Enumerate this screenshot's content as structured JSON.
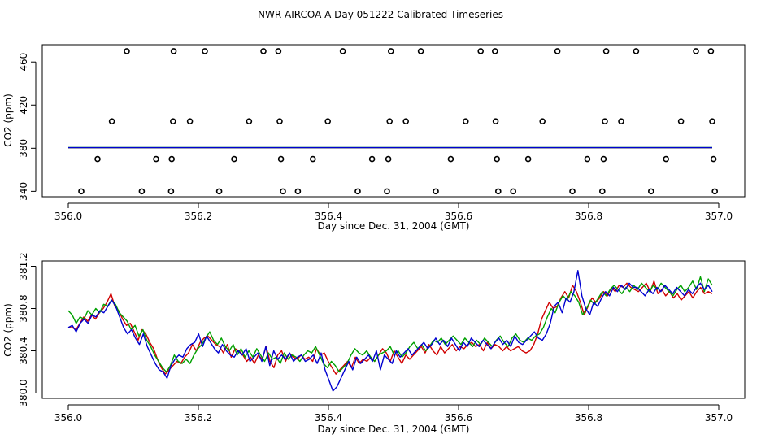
{
  "figure": {
    "title": "NWR AIRCOA A  Day 051222  Calibrated Timeseries"
  },
  "chart_data": [
    {
      "type": "scatter",
      "title": "",
      "xlabel": "Day since Dec. 31, 2004 (GMT)",
      "ylabel": "CO2 (ppm)",
      "xlim": [
        355.96,
        357.04
      ],
      "ylim": [
        335,
        476
      ],
      "xticks": [
        356.0,
        356.2,
        356.4,
        356.6,
        356.8,
        357.0
      ],
      "xtick_labels": [
        "356.0",
        "356.2",
        "356.4",
        "356.6",
        "356.8",
        "357.0"
      ],
      "yticks": [
        340,
        380,
        420,
        460
      ],
      "ytick_labels": [
        "340",
        "380",
        "420",
        "460"
      ],
      "grid": false,
      "points": {
        "color": "#000000",
        "x": [
          356.02,
          356.045,
          356.067,
          356.09,
          356.113,
          356.135,
          356.158,
          356.159,
          356.161,
          356.162,
          356.187,
          356.21,
          356.232,
          356.255,
          356.278,
          356.3,
          356.323,
          356.325,
          356.327,
          356.33,
          356.353,
          356.376,
          356.399,
          356.422,
          356.445,
          356.467,
          356.49,
          356.492,
          356.494,
          356.496,
          356.519,
          356.542,
          356.565,
          356.588,
          356.611,
          356.634,
          356.656,
          356.657,
          356.659,
          356.661,
          356.684,
          356.707,
          356.729,
          356.752,
          356.775,
          356.798,
          356.821,
          356.823,
          356.825,
          356.827,
          356.85,
          356.873,
          356.896,
          356.919,
          356.942,
          356.965,
          356.988,
          356.99,
          356.992,
          356.994
        ],
        "y": [
          340,
          370,
          405,
          470,
          340,
          370,
          340,
          370,
          405,
          470,
          405,
          470,
          340,
          370,
          405,
          470,
          470,
          405,
          370,
          340,
          340,
          370,
          405,
          470,
          340,
          370,
          340,
          370,
          405,
          470,
          405,
          470,
          340,
          370,
          405,
          470,
          470,
          405,
          370,
          340,
          340,
          370,
          405,
          470,
          340,
          370,
          340,
          370,
          405,
          470,
          405,
          470,
          340,
          370,
          405,
          470,
          470,
          405,
          370,
          340
        ]
      },
      "series": [
        {
          "color": "#d00000",
          "x_start": 356.0,
          "x_end": 356.99,
          "values": [
            380.5
          ]
        },
        {
          "color": "#00a000",
          "x_start": 356.0,
          "x_end": 356.99,
          "values": [
            380.6
          ]
        },
        {
          "color": "#0000d0",
          "x_start": 356.0,
          "x_end": 356.99,
          "values": [
            380.55
          ]
        }
      ]
    },
    {
      "type": "line",
      "title": "",
      "xlabel": "Day since Dec. 31, 2004 (GMT)",
      "ylabel": "CO2 (ppm)",
      "xlim": [
        355.96,
        357.04
      ],
      "ylim": [
        379.95,
        381.25
      ],
      "xticks": [
        356.0,
        356.2,
        356.4,
        356.6,
        356.8,
        357.0
      ],
      "xtick_labels": [
        "356.0",
        "356.2",
        "356.4",
        "356.6",
        "356.8",
        "357.0"
      ],
      "yticks": [
        380.0,
        380.4,
        380.8,
        381.2
      ],
      "ytick_labels": [
        "380.0",
        "380.4",
        "380.8",
        "381.2"
      ],
      "grid": false,
      "series": [
        {
          "color": "#d00000",
          "x_start": 356.0,
          "x_end": 356.99,
          "values": [
            380.62,
            380.62,
            380.6,
            380.66,
            380.72,
            380.68,
            380.74,
            380.7,
            380.76,
            380.8,
            380.86,
            380.94,
            380.82,
            380.78,
            380.7,
            380.64,
            380.66,
            380.58,
            380.5,
            380.6,
            380.56,
            380.48,
            380.42,
            380.32,
            380.24,
            380.18,
            380.22,
            380.26,
            380.3,
            380.28,
            380.34,
            380.38,
            380.46,
            380.4,
            380.48,
            380.52,
            380.54,
            380.5,
            380.46,
            380.44,
            380.38,
            380.46,
            380.34,
            380.42,
            380.4,
            380.36,
            380.3,
            380.34,
            380.28,
            380.36,
            380.32,
            380.44,
            380.3,
            380.24,
            380.36,
            380.4,
            380.3,
            380.38,
            380.34,
            380.32,
            380.36,
            380.32,
            380.34,
            380.3,
            380.42,
            380.36,
            380.38,
            380.3,
            380.24,
            380.18,
            380.22,
            380.26,
            380.3,
            380.24,
            380.34,
            380.28,
            380.32,
            380.3,
            380.34,
            380.3,
            380.36,
            380.42,
            380.38,
            380.3,
            380.4,
            380.34,
            380.28,
            380.36,
            380.32,
            380.36,
            380.4,
            380.44,
            380.38,
            380.46,
            380.4,
            380.36,
            380.44,
            380.38,
            380.42,
            380.46,
            380.4,
            380.44,
            380.42,
            380.46,
            380.48,
            380.44,
            380.46,
            380.4,
            380.48,
            380.42,
            380.46,
            380.44,
            380.4,
            380.44,
            380.4,
            380.42,
            380.44,
            380.4,
            380.38,
            380.4,
            380.46,
            380.56,
            380.7,
            380.78,
            380.86,
            380.8,
            380.82,
            380.9,
            380.96,
            380.9,
            381.02,
            380.96,
            380.86,
            380.74,
            380.82,
            380.9,
            380.86,
            380.9,
            380.96,
            380.92,
            381.0,
            380.96,
            381.02,
            381.0,
            381.04,
            381.0,
            380.98,
            380.96,
            381.0,
            381.04,
            380.96,
            381.06,
            380.94,
            380.98,
            380.92,
            380.96,
            380.9,
            380.94,
            380.88,
            380.92,
            380.96,
            380.9,
            380.96,
            381.0,
            380.94,
            380.96,
            380.94
          ]
        },
        {
          "color": "#00a000",
          "x_start": 356.0,
          "x_end": 356.99,
          "values": [
            380.78,
            380.74,
            380.66,
            380.72,
            380.7,
            380.78,
            380.74,
            380.8,
            380.76,
            380.84,
            380.82,
            380.88,
            380.84,
            380.76,
            380.72,
            380.68,
            380.6,
            380.64,
            380.54,
            380.6,
            380.5,
            380.44,
            380.36,
            380.3,
            380.24,
            380.2,
            380.26,
            380.36,
            380.3,
            380.28,
            380.32,
            380.28,
            380.36,
            380.42,
            380.46,
            380.52,
            380.58,
            380.5,
            380.46,
            380.52,
            380.44,
            380.4,
            380.46,
            380.36,
            380.42,
            380.34,
            380.4,
            380.34,
            380.42,
            380.36,
            380.3,
            380.38,
            380.32,
            380.34,
            380.28,
            380.38,
            380.32,
            380.36,
            380.34,
            380.3,
            380.36,
            380.4,
            380.38,
            380.44,
            380.36,
            380.28,
            380.24,
            380.3,
            380.26,
            380.2,
            380.24,
            380.28,
            380.36,
            380.42,
            380.38,
            380.36,
            380.4,
            380.34,
            380.3,
            380.36,
            380.38,
            380.4,
            380.44,
            380.36,
            380.4,
            380.34,
            380.38,
            380.44,
            380.48,
            380.42,
            380.46,
            380.4,
            380.44,
            380.5,
            380.48,
            380.52,
            380.46,
            380.5,
            380.54,
            380.5,
            380.46,
            380.52,
            380.48,
            380.44,
            380.5,
            380.46,
            380.52,
            380.48,
            380.44,
            380.5,
            380.54,
            380.48,
            380.44,
            380.52,
            380.56,
            380.5,
            380.48,
            380.52,
            380.5,
            380.54,
            380.56,
            380.62,
            380.72,
            380.8,
            380.76,
            380.86,
            380.92,
            380.88,
            380.96,
            380.92,
            380.86,
            380.74,
            380.8,
            380.88,
            380.84,
            380.9,
            380.96,
            380.92,
            380.98,
            381.02,
            380.98,
            380.94,
            381.0,
            380.96,
            381.02,
            380.98,
            381.04,
            381.0,
            380.96,
            381.02,
            380.98,
            381.04,
            381.0,
            380.96,
            380.92,
            380.98,
            381.02,
            380.96,
            381.0,
            381.06,
            380.98,
            381.1,
            380.96,
            381.08,
            381.02
          ]
        },
        {
          "color": "#0000d0",
          "x_start": 356.0,
          "x_end": 356.99,
          "values": [
            380.62,
            380.64,
            380.58,
            380.66,
            380.7,
            380.66,
            380.74,
            380.72,
            380.78,
            380.76,
            380.82,
            380.88,
            380.82,
            380.72,
            380.62,
            380.56,
            380.6,
            380.52,
            380.46,
            380.56,
            380.44,
            380.36,
            380.28,
            380.22,
            380.2,
            380.14,
            380.26,
            380.32,
            380.36,
            380.34,
            380.42,
            380.46,
            380.48,
            380.56,
            380.44,
            380.54,
            380.48,
            380.42,
            380.38,
            380.46,
            380.4,
            380.36,
            380.34,
            380.4,
            380.36,
            380.42,
            380.3,
            380.34,
            380.38,
            380.3,
            380.44,
            380.26,
            380.4,
            380.32,
            380.36,
            380.32,
            380.38,
            380.3,
            380.34,
            380.36,
            380.3,
            380.32,
            380.36,
            380.28,
            380.38,
            380.22,
            380.12,
            380.02,
            380.06,
            380.14,
            380.22,
            380.3,
            380.22,
            380.34,
            380.28,
            380.32,
            380.36,
            380.3,
            380.4,
            380.22,
            380.36,
            380.32,
            380.28,
            380.4,
            380.34,
            380.38,
            380.42,
            380.36,
            380.4,
            380.44,
            380.48,
            380.42,
            380.46,
            380.52,
            380.46,
            380.5,
            380.44,
            380.52,
            380.46,
            380.4,
            380.48,
            380.44,
            380.52,
            380.48,
            380.44,
            380.5,
            380.46,
            380.42,
            380.48,
            380.52,
            380.46,
            380.5,
            380.44,
            380.54,
            380.48,
            380.46,
            380.5,
            380.54,
            380.58,
            380.52,
            380.5,
            380.56,
            380.66,
            380.82,
            380.86,
            380.76,
            380.9,
            380.86,
            380.96,
            381.16,
            380.92,
            380.8,
            380.74,
            380.86,
            380.82,
            380.9,
            380.96,
            380.92,
            381.0,
            380.96,
            381.02,
            380.98,
            381.04,
            381.0,
            381.0,
            380.96,
            380.92,
            380.98,
            380.94,
            381.0,
            380.96,
            381.02,
            380.98,
            380.94,
            381.0,
            380.96,
            380.92,
            380.98,
            380.94,
            381.0,
            381.04,
            380.98,
            381.02,
            380.96
          ]
        }
      ]
    }
  ]
}
